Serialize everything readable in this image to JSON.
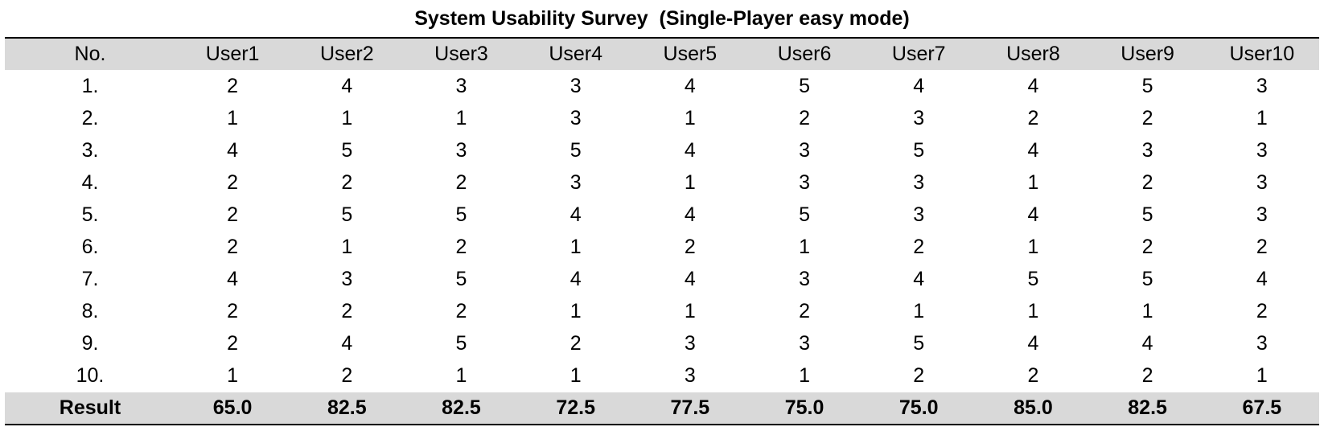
{
  "table": {
    "title": "System Usability Survey  (Single-Player easy mode)",
    "header": [
      "No.",
      "User1",
      "User2",
      "User3",
      "User4",
      "User5",
      "User6",
      "User7",
      "User8",
      "User9",
      "User10"
    ],
    "rows": [
      [
        "1.",
        "2",
        "4",
        "3",
        "3",
        "4",
        "5",
        "4",
        "4",
        "5",
        "3"
      ],
      [
        "2.",
        "1",
        "1",
        "1",
        "3",
        "1",
        "2",
        "3",
        "2",
        "2",
        "1"
      ],
      [
        "3.",
        "4",
        "5",
        "3",
        "5",
        "4",
        "3",
        "5",
        "4",
        "3",
        "3"
      ],
      [
        "4.",
        "2",
        "2",
        "2",
        "3",
        "1",
        "3",
        "3",
        "1",
        "2",
        "3"
      ],
      [
        "5.",
        "2",
        "5",
        "5",
        "4",
        "4",
        "5",
        "3",
        "4",
        "5",
        "3"
      ],
      [
        "6.",
        "2",
        "1",
        "2",
        "1",
        "2",
        "1",
        "2",
        "1",
        "2",
        "2"
      ],
      [
        "7.",
        "4",
        "3",
        "5",
        "4",
        "4",
        "3",
        "4",
        "5",
        "5",
        "4"
      ],
      [
        "8.",
        "2",
        "2",
        "2",
        "1",
        "1",
        "2",
        "1",
        "1",
        "1",
        "2"
      ],
      [
        "9.",
        "2",
        "4",
        "5",
        "2",
        "3",
        "3",
        "5",
        "4",
        "4",
        "3"
      ],
      [
        "10.",
        "1",
        "2",
        "1",
        "1",
        "3",
        "1",
        "2",
        "2",
        "2",
        "1"
      ]
    ],
    "result": [
      "Result",
      "65.0",
      "82.5",
      "82.5",
      "72.5",
      "77.5",
      "75.0",
      "75.0",
      "85.0",
      "82.5",
      "67.5"
    ]
  }
}
